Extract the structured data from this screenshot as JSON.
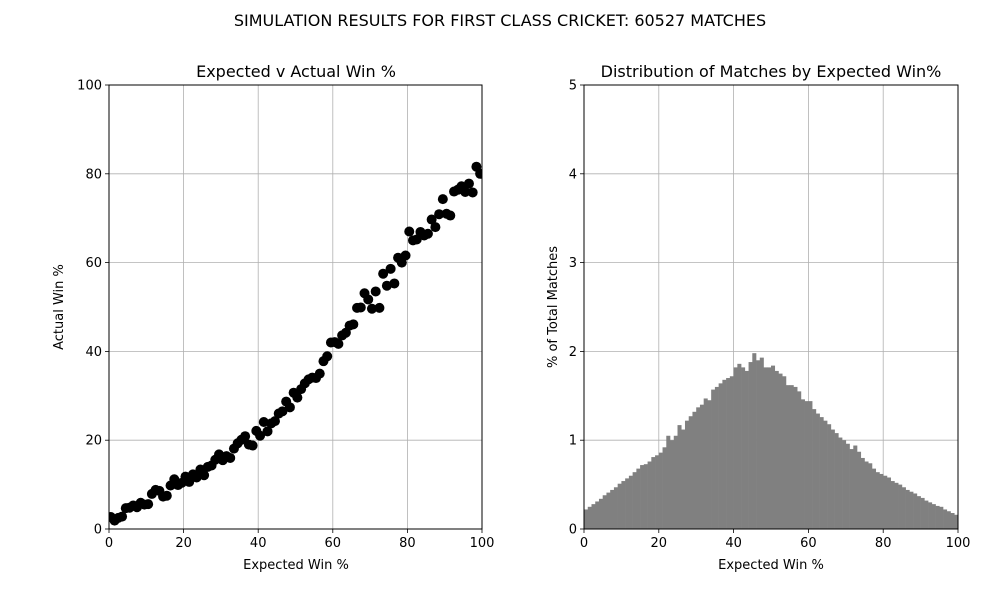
{
  "figure": {
    "suptitle": "SIMULATION RESULTS FOR FIRST CLASS CRICKET: 60527 MATCHES"
  },
  "chart_data": [
    {
      "type": "scatter",
      "title": "Expected v Actual Win %",
      "xlabel": "Expected Win %",
      "ylabel": "Actual Win %",
      "xlim": [
        0,
        100
      ],
      "ylim": [
        0,
        100
      ],
      "xticks": [
        "0",
        "20",
        "40",
        "60",
        "80",
        "100"
      ],
      "yticks": [
        "0",
        "20",
        "40",
        "60",
        "80",
        "100"
      ],
      "grid": true,
      "marker_color": "#000000",
      "x": [
        0.5,
        1.5,
        2.5,
        3.5,
        4.5,
        5.5,
        6.5,
        7.5,
        8.5,
        9.5,
        10.5,
        11.5,
        12.5,
        13.5,
        14.5,
        15.5,
        16.5,
        17.5,
        18.5,
        19.5,
        20.5,
        21.5,
        22.5,
        23.5,
        24.5,
        25.5,
        26.5,
        27.5,
        28.5,
        29.5,
        30.5,
        31.5,
        32.5,
        33.5,
        34.5,
        35.5,
        36.5,
        37.5,
        38.5,
        39.5,
        40.5,
        41.5,
        42.5,
        43.5,
        44.5,
        45.5,
        46.5,
        47.5,
        48.5,
        49.5,
        50.5,
        51.5,
        52.5,
        53.5,
        54.5,
        55.5,
        56.5,
        57.5,
        58.5,
        59.5,
        60.5,
        61.5,
        62.5,
        63.5,
        64.5,
        65.5,
        66.5,
        67.5,
        68.5,
        69.5,
        70.5,
        71.5,
        72.5,
        73.5,
        74.5,
        75.5,
        76.5,
        77.5,
        78.5,
        79.5,
        80.5,
        81.5,
        82.5,
        83.5,
        84.5,
        85.5,
        86.5,
        87.5,
        88.5,
        89.5,
        90.5,
        91.5,
        92.5,
        93.5,
        94.5,
        95.5,
        96.5,
        97.5,
        98.5,
        99.5
      ],
      "y": [
        2.7,
        1.9,
        2.5,
        2.8,
        4.7,
        4.8,
        5.3,
        4.9,
        5.9,
        5.5,
        5.6,
        7.9,
        8.8,
        8.6,
        7.3,
        7.5,
        9.8,
        11.2,
        9.9,
        10.4,
        11.8,
        10.6,
        12.3,
        11.6,
        13.4,
        12.1,
        14.0,
        14.3,
        15.6,
        16.8,
        15.5,
        16.4,
        16.0,
        18.1,
        19.3,
        20.1,
        20.9,
        19.0,
        18.8,
        22.1,
        21.0,
        24.1,
        22.0,
        23.8,
        24.3,
        26.0,
        26.5,
        28.7,
        27.4,
        30.7,
        29.6,
        31.5,
        32.8,
        33.7,
        34.1,
        34.0,
        35.0,
        37.8,
        38.9,
        42.0,
        42.1,
        41.7,
        43.6,
        44.2,
        45.8,
        46.1,
        49.8,
        49.9,
        53.1,
        51.7,
        49.6,
        53.5,
        49.8,
        57.5,
        54.8,
        58.6,
        55.3,
        61.1,
        60.0,
        61.6,
        67.0,
        65.0,
        65.2,
        66.9,
        66.1,
        66.5,
        69.7,
        68.0,
        70.9,
        74.3,
        71.0,
        70.6,
        76.0,
        76.4,
        77.2,
        75.9,
        77.8,
        75.8,
        81.6,
        80.0
      ]
    },
    {
      "type": "bar",
      "title": "Distribution of Matches by Expected Win%",
      "xlabel": "Expected Win %",
      "ylabel": "% of Total Matches",
      "xlim": [
        0,
        100
      ],
      "ylim": [
        0,
        5
      ],
      "xticks": [
        "0",
        "20",
        "40",
        "60",
        "80",
        "100"
      ],
      "yticks": [
        "0",
        "1",
        "2",
        "3",
        "4",
        "5"
      ],
      "grid": true,
      "bar_color": "#808080",
      "bin_width": 1,
      "values": [
        0.22,
        0.25,
        0.28,
        0.31,
        0.34,
        0.38,
        0.41,
        0.44,
        0.47,
        0.51,
        0.54,
        0.57,
        0.6,
        0.64,
        0.68,
        0.72,
        0.73,
        0.76,
        0.81,
        0.83,
        0.86,
        0.92,
        1.05,
        1.0,
        1.05,
        1.17,
        1.12,
        1.22,
        1.27,
        1.32,
        1.37,
        1.4,
        1.47,
        1.45,
        1.57,
        1.6,
        1.64,
        1.68,
        1.7,
        1.72,
        1.82,
        1.86,
        1.82,
        1.78,
        1.88,
        1.98,
        1.9,
        1.93,
        1.82,
        1.82,
        1.84,
        1.78,
        1.75,
        1.72,
        1.62,
        1.62,
        1.6,
        1.55,
        1.46,
        1.44,
        1.44,
        1.35,
        1.3,
        1.26,
        1.22,
        1.18,
        1.12,
        1.08,
        1.03,
        1.0,
        0.96,
        0.9,
        0.94,
        0.87,
        0.8,
        0.76,
        0.74,
        0.68,
        0.64,
        0.62,
        0.6,
        0.58,
        0.54,
        0.52,
        0.5,
        0.47,
        0.44,
        0.42,
        0.4,
        0.37,
        0.35,
        0.32,
        0.3,
        0.28,
        0.26,
        0.25,
        0.22,
        0.2,
        0.18,
        0.16
      ]
    }
  ]
}
